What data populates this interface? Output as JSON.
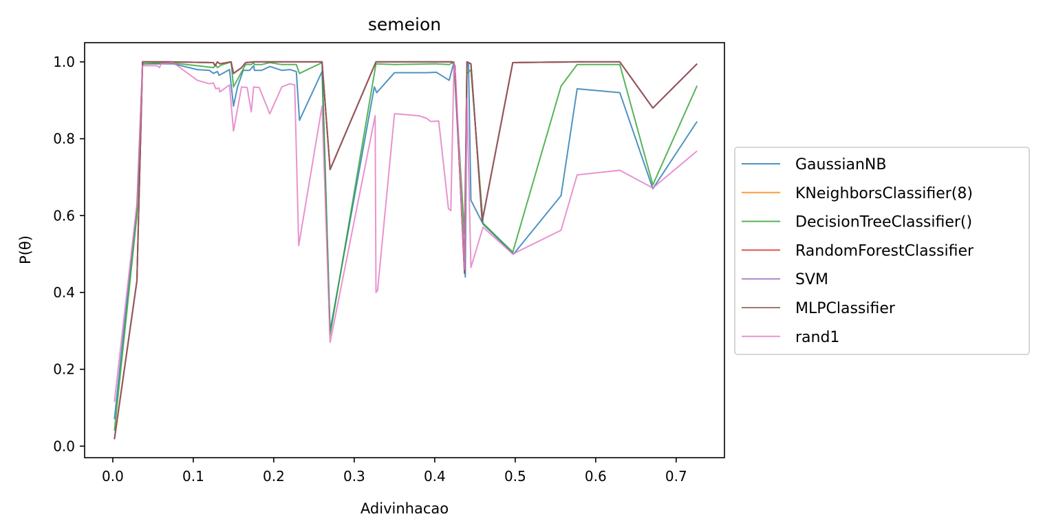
{
  "chart_data": {
    "type": "line",
    "title": "semeion",
    "xlabel": "Adivinhacao",
    "ylabel": "P(θ)",
    "xlim": [
      -0.035,
      0.76
    ],
    "ylim": [
      -0.03,
      1.05
    ],
    "xticks": [
      0.0,
      0.1,
      0.2,
      0.3,
      0.4,
      0.5,
      0.6,
      0.7
    ],
    "xtick_labels": [
      "0.0",
      "0.1",
      "0.2",
      "0.3",
      "0.4",
      "0.5",
      "0.6",
      "0.7"
    ],
    "yticks": [
      0.0,
      0.2,
      0.4,
      0.6,
      0.8,
      1.0
    ],
    "ytick_labels": [
      "0.0",
      "0.2",
      "0.4",
      "0.6",
      "0.8",
      "1.0"
    ],
    "grid": false,
    "legend_position": "right-outside",
    "series": [
      {
        "name": "GaussianNB",
        "color": "#1f77b4",
        "points": [
          [
            0.002,
            0.07
          ],
          [
            0.03,
            0.62
          ],
          [
            0.037,
            0.995
          ],
          [
            0.05,
            0.995
          ],
          [
            0.075,
            0.995
          ],
          [
            0.105,
            0.98
          ],
          [
            0.12,
            0.978
          ],
          [
            0.125,
            0.97
          ],
          [
            0.13,
            0.975
          ],
          [
            0.132,
            0.965
          ],
          [
            0.145,
            0.98
          ],
          [
            0.15,
            0.885
          ],
          [
            0.155,
            0.935
          ],
          [
            0.162,
            0.978
          ],
          [
            0.17,
            0.978
          ],
          [
            0.175,
            0.99
          ],
          [
            0.176,
            0.978
          ],
          [
            0.185,
            0.978
          ],
          [
            0.195,
            0.988
          ],
          [
            0.21,
            0.978
          ],
          [
            0.22,
            0.98
          ],
          [
            0.228,
            0.975
          ],
          [
            0.232,
            0.848
          ],
          [
            0.26,
            0.975
          ],
          [
            0.27,
            0.3
          ],
          [
            0.325,
            0.935
          ],
          [
            0.328,
            0.92
          ],
          [
            0.35,
            0.972
          ],
          [
            0.39,
            0.972
          ],
          [
            0.402,
            0.973
          ],
          [
            0.418,
            0.952
          ],
          [
            0.424,
            1.0
          ],
          [
            0.438,
            0.44
          ],
          [
            0.44,
            0.995
          ],
          [
            0.442,
            0.995
          ],
          [
            0.445,
            0.64
          ],
          [
            0.46,
            0.578
          ],
          [
            0.498,
            0.5
          ],
          [
            0.557,
            0.652
          ],
          [
            0.577,
            0.93
          ],
          [
            0.63,
            0.92
          ],
          [
            0.671,
            0.67
          ],
          [
            0.726,
            0.845
          ]
        ]
      },
      {
        "name": "KNeighborsClassifier(8)",
        "color": "#ff7f0e",
        "points": [
          [
            0.002,
            0.018
          ],
          [
            0.03,
            0.43
          ],
          [
            0.037,
            1.0
          ],
          [
            0.07,
            1.0
          ],
          [
            0.125,
            0.998
          ],
          [
            0.127,
            0.99
          ],
          [
            0.13,
            1.0
          ],
          [
            0.133,
            0.995
          ],
          [
            0.147,
            1.0
          ],
          [
            0.15,
            0.97
          ],
          [
            0.16,
            0.985
          ],
          [
            0.165,
            0.998
          ],
          [
            0.175,
            1.0
          ],
          [
            0.2,
            1.0
          ],
          [
            0.229,
            1.0
          ],
          [
            0.26,
            1.0
          ],
          [
            0.27,
            0.72
          ],
          [
            0.327,
            1.0
          ],
          [
            0.422,
            1.0
          ],
          [
            0.425,
            0.99
          ],
          [
            0.437,
            0.45
          ],
          [
            0.44,
            1.0
          ],
          [
            0.445,
            0.995
          ],
          [
            0.459,
            0.585
          ],
          [
            0.497,
            0.998
          ],
          [
            0.577,
            1.0
          ],
          [
            0.63,
            1.0
          ],
          [
            0.671,
            0.88
          ],
          [
            0.726,
            0.995
          ]
        ]
      },
      {
        "name": "DecisionTreeClassifier()",
        "color": "#2ca02c",
        "points": [
          [
            0.002,
            0.04
          ],
          [
            0.03,
            0.6
          ],
          [
            0.037,
            0.995
          ],
          [
            0.07,
            0.998
          ],
          [
            0.105,
            0.99
          ],
          [
            0.125,
            0.985
          ],
          [
            0.128,
            0.992
          ],
          [
            0.13,
            0.985
          ],
          [
            0.135,
            0.992
          ],
          [
            0.147,
            1.0
          ],
          [
            0.15,
            0.935
          ],
          [
            0.165,
            0.993
          ],
          [
            0.172,
            0.993
          ],
          [
            0.175,
            0.998
          ],
          [
            0.176,
            0.993
          ],
          [
            0.185,
            0.993
          ],
          [
            0.195,
            0.998
          ],
          [
            0.21,
            0.993
          ],
          [
            0.228,
            0.993
          ],
          [
            0.232,
            0.97
          ],
          [
            0.26,
            0.998
          ],
          [
            0.27,
            0.29
          ],
          [
            0.327,
            0.995
          ],
          [
            0.35,
            0.993
          ],
          [
            0.4,
            0.995
          ],
          [
            0.418,
            0.993
          ],
          [
            0.424,
            1.0
          ],
          [
            0.437,
            0.55
          ],
          [
            0.44,
            0.97
          ],
          [
            0.445,
            0.98
          ],
          [
            0.46,
            0.58
          ],
          [
            0.497,
            0.505
          ],
          [
            0.557,
            0.937
          ],
          [
            0.577,
            0.993
          ],
          [
            0.63,
            0.993
          ],
          [
            0.671,
            0.68
          ],
          [
            0.726,
            0.938
          ]
        ]
      },
      {
        "name": "RandomForestClassifier",
        "color": "#d62728",
        "points": [
          [
            0.002,
            0.018
          ],
          [
            0.03,
            0.43
          ],
          [
            0.037,
            1.0
          ],
          [
            0.07,
            1.0
          ],
          [
            0.125,
            0.998
          ],
          [
            0.127,
            0.99
          ],
          [
            0.13,
            1.0
          ],
          [
            0.133,
            0.995
          ],
          [
            0.147,
            1.0
          ],
          [
            0.15,
            0.97
          ],
          [
            0.16,
            0.985
          ],
          [
            0.165,
            0.998
          ],
          [
            0.175,
            1.0
          ],
          [
            0.2,
            1.0
          ],
          [
            0.229,
            1.0
          ],
          [
            0.26,
            1.0
          ],
          [
            0.27,
            0.72
          ],
          [
            0.327,
            1.0
          ],
          [
            0.422,
            1.0
          ],
          [
            0.425,
            0.99
          ],
          [
            0.437,
            0.45
          ],
          [
            0.44,
            1.0
          ],
          [
            0.445,
            0.995
          ],
          [
            0.459,
            0.585
          ],
          [
            0.497,
            0.998
          ],
          [
            0.577,
            1.0
          ],
          [
            0.63,
            1.0
          ],
          [
            0.671,
            0.88
          ],
          [
            0.726,
            0.995
          ]
        ]
      },
      {
        "name": "SVM",
        "color": "#9467bd",
        "points": [
          [
            0.002,
            0.018
          ],
          [
            0.03,
            0.43
          ],
          [
            0.037,
            1.0
          ],
          [
            0.07,
            1.0
          ],
          [
            0.125,
            0.998
          ],
          [
            0.127,
            0.99
          ],
          [
            0.13,
            1.0
          ],
          [
            0.133,
            0.995
          ],
          [
            0.147,
            1.0
          ],
          [
            0.15,
            0.97
          ],
          [
            0.16,
            0.985
          ],
          [
            0.165,
            0.998
          ],
          [
            0.175,
            1.0
          ],
          [
            0.2,
            1.0
          ],
          [
            0.229,
            1.0
          ],
          [
            0.26,
            1.0
          ],
          [
            0.27,
            0.72
          ],
          [
            0.327,
            1.0
          ],
          [
            0.422,
            1.0
          ],
          [
            0.425,
            0.99
          ],
          [
            0.437,
            0.45
          ],
          [
            0.44,
            1.0
          ],
          [
            0.445,
            0.995
          ],
          [
            0.459,
            0.585
          ],
          [
            0.497,
            0.998
          ],
          [
            0.577,
            1.0
          ],
          [
            0.63,
            1.0
          ],
          [
            0.671,
            0.88
          ],
          [
            0.726,
            0.995
          ]
        ]
      },
      {
        "name": "MLPClassifier",
        "color": "#8c564b",
        "points": [
          [
            0.002,
            0.018
          ],
          [
            0.03,
            0.43
          ],
          [
            0.037,
            1.0
          ],
          [
            0.07,
            1.0
          ],
          [
            0.125,
            0.998
          ],
          [
            0.127,
            0.99
          ],
          [
            0.13,
            1.0
          ],
          [
            0.133,
            0.995
          ],
          [
            0.147,
            1.0
          ],
          [
            0.15,
            0.97
          ],
          [
            0.16,
            0.985
          ],
          [
            0.165,
            0.998
          ],
          [
            0.175,
            1.0
          ],
          [
            0.2,
            1.0
          ],
          [
            0.229,
            1.0
          ],
          [
            0.26,
            1.0
          ],
          [
            0.27,
            0.72
          ],
          [
            0.327,
            1.0
          ],
          [
            0.422,
            1.0
          ],
          [
            0.425,
            0.99
          ],
          [
            0.437,
            0.45
          ],
          [
            0.44,
            1.0
          ],
          [
            0.445,
            0.995
          ],
          [
            0.459,
            0.585
          ],
          [
            0.497,
            0.998
          ],
          [
            0.577,
            1.0
          ],
          [
            0.63,
            1.0
          ],
          [
            0.671,
            0.88
          ],
          [
            0.726,
            0.995
          ]
        ]
      },
      {
        "name": "rand1",
        "color": "#e377c2",
        "points": [
          [
            0.002,
            0.115
          ],
          [
            0.03,
            0.63
          ],
          [
            0.037,
            0.99
          ],
          [
            0.05,
            0.99
          ],
          [
            0.055,
            0.99
          ],
          [
            0.058,
            0.985
          ],
          [
            0.06,
            0.995
          ],
          [
            0.075,
            0.998
          ],
          [
            0.105,
            0.952
          ],
          [
            0.12,
            0.943
          ],
          [
            0.125,
            0.945
          ],
          [
            0.128,
            0.93
          ],
          [
            0.132,
            0.932
          ],
          [
            0.133,
            0.922
          ],
          [
            0.145,
            0.94
          ],
          [
            0.15,
            0.82
          ],
          [
            0.16,
            0.935
          ],
          [
            0.167,
            0.933
          ],
          [
            0.172,
            0.87
          ],
          [
            0.175,
            0.935
          ],
          [
            0.182,
            0.933
          ],
          [
            0.195,
            0.865
          ],
          [
            0.21,
            0.935
          ],
          [
            0.22,
            0.943
          ],
          [
            0.226,
            0.94
          ],
          [
            0.229,
            0.69
          ],
          [
            0.231,
            0.522
          ],
          [
            0.26,
            0.885
          ],
          [
            0.27,
            0.27
          ],
          [
            0.326,
            0.86
          ],
          [
            0.327,
            0.4
          ],
          [
            0.329,
            0.405
          ],
          [
            0.35,
            0.865
          ],
          [
            0.38,
            0.86
          ],
          [
            0.39,
            0.853
          ],
          [
            0.395,
            0.845
          ],
          [
            0.405,
            0.846
          ],
          [
            0.417,
            0.618
          ],
          [
            0.42,
            0.613
          ],
          [
            0.424,
            1.0
          ],
          [
            0.426,
            0.96
          ],
          [
            0.437,
            0.46
          ],
          [
            0.44,
            0.905
          ],
          [
            0.445,
            0.465
          ],
          [
            0.46,
            0.57
          ],
          [
            0.497,
            0.5
          ],
          [
            0.557,
            0.562
          ],
          [
            0.577,
            0.706
          ],
          [
            0.63,
            0.718
          ],
          [
            0.671,
            0.672
          ],
          [
            0.726,
            0.768
          ]
        ]
      }
    ]
  }
}
